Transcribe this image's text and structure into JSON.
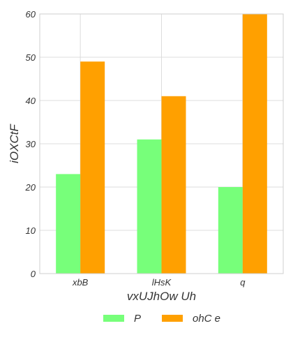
{
  "chart_data": {
    "type": "bar",
    "categories": [
      "xbB",
      "lHsK",
      "q"
    ],
    "series": [
      {
        "name": "P",
        "values": [
          23,
          31,
          20
        ],
        "color": "#77ff7a"
      },
      {
        "name": "ohC e",
        "values": [
          49,
          41,
          60
        ],
        "color": "#ffa000"
      }
    ],
    "xlabel": "vxUJhOw Uh",
    "ylabel": "iOXCtF",
    "ylim": [
      0,
      60
    ],
    "yticks": [
      0,
      10,
      20,
      30,
      40,
      50,
      60
    ],
    "grid": true,
    "legend_position": "bottom-center"
  }
}
